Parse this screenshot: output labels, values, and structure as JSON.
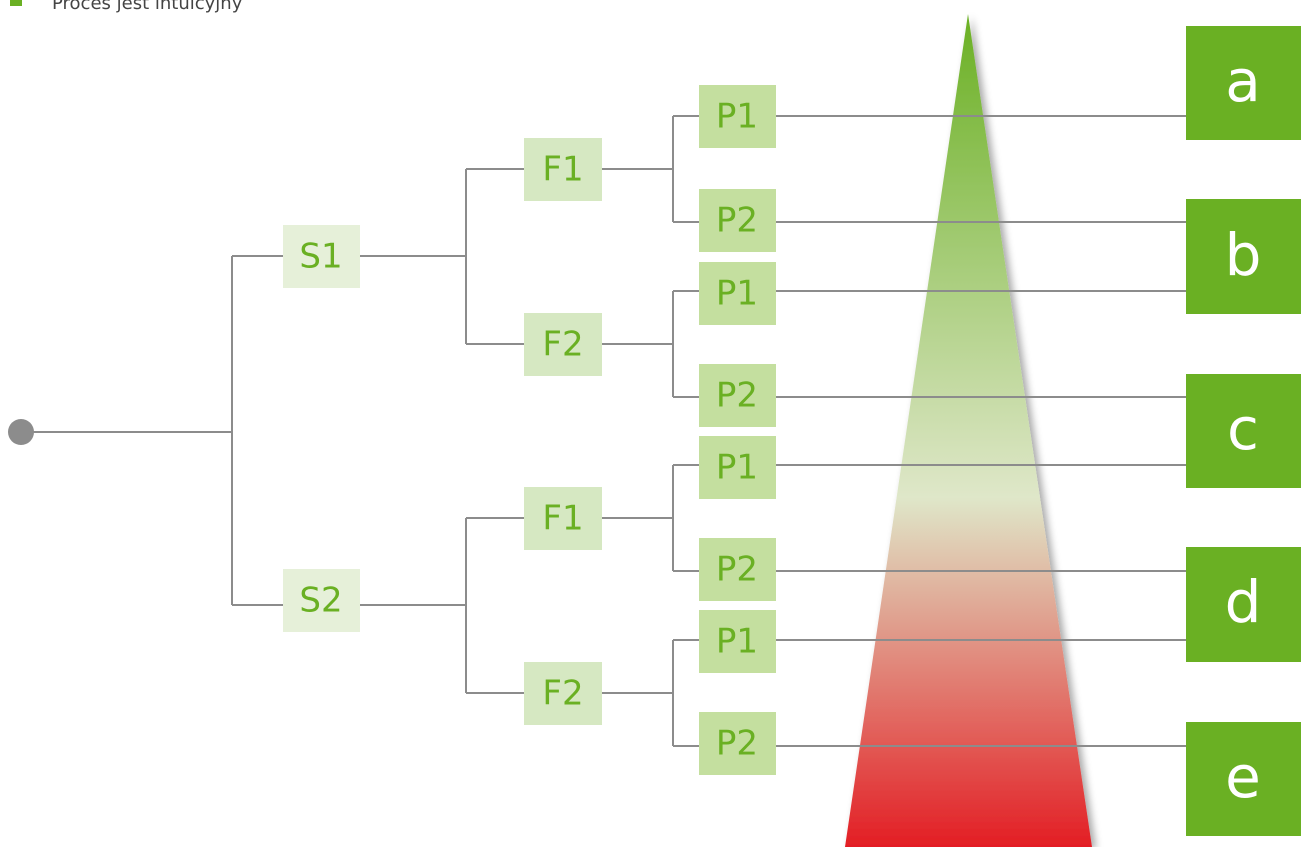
{
  "legend": {
    "label": "Proces jest intuicyjny",
    "marker_color": "#6ab023"
  },
  "colors": {
    "line": "#8c8c8c",
    "root_dot": "#8c8c8c",
    "node_text": "#6ab023",
    "s_node_fill": "#e6f0d9",
    "f_node_fill": "#d6e8c2",
    "p_node_fill": "#c4df9f",
    "outcome_fill": "#6ab023",
    "outcome_text": "#ffffff",
    "cone_top": "#6ab023",
    "cone_mid": "#dfe7c9",
    "cone_bottom": "#e31e24"
  },
  "tree": {
    "root": "",
    "nodes": [
      {
        "id": "S1",
        "label": "S1",
        "level": "S",
        "children": [
          "F1a",
          "F2a"
        ]
      },
      {
        "id": "S2",
        "label": "S2",
        "level": "S",
        "children": [
          "F1b",
          "F2b"
        ]
      },
      {
        "id": "F1a",
        "label": "F1",
        "level": "F",
        "children": [
          "P1a",
          "P2a"
        ]
      },
      {
        "id": "F2a",
        "label": "F2",
        "level": "F",
        "children": [
          "P1b",
          "P2b"
        ]
      },
      {
        "id": "F1b",
        "label": "F1",
        "level": "F",
        "children": [
          "P1c",
          "P2c"
        ]
      },
      {
        "id": "F2b",
        "label": "F2",
        "level": "F",
        "children": [
          "P1d",
          "P2d"
        ]
      },
      {
        "id": "P1a",
        "label": "P1",
        "level": "P",
        "leads_to": "a"
      },
      {
        "id": "P2a",
        "label": "P2",
        "level": "P",
        "leads_to": "b"
      },
      {
        "id": "P1b",
        "label": "P1",
        "level": "P",
        "leads_to": "b"
      },
      {
        "id": "P2b",
        "label": "P2",
        "level": "P",
        "leads_to": "c"
      },
      {
        "id": "P1c",
        "label": "P1",
        "level": "P",
        "leads_to": "c"
      },
      {
        "id": "P2c",
        "label": "P2",
        "level": "P",
        "leads_to": "d"
      },
      {
        "id": "P1d",
        "label": "P1",
        "level": "P",
        "leads_to": "d"
      },
      {
        "id": "P2d",
        "label": "P2",
        "level": "P",
        "leads_to": "e"
      }
    ]
  },
  "outcomes": [
    {
      "id": "a",
      "label": "a"
    },
    {
      "id": "b",
      "label": "b"
    },
    {
      "id": "c",
      "label": "c"
    },
    {
      "id": "d",
      "label": "d"
    },
    {
      "id": "e",
      "label": "e"
    }
  ]
}
